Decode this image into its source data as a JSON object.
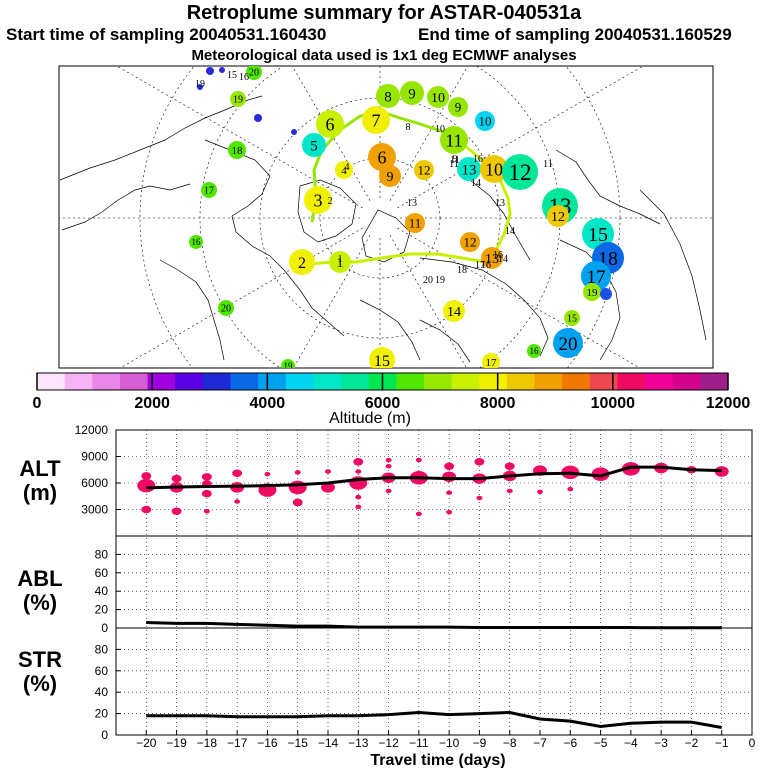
{
  "header": {
    "title": "Retroplume summary for ASTAR-040531a",
    "start_time": "Start time of sampling 20040531.160430",
    "end_time": "End time of sampling 20040531.160529",
    "met_data": "Meteorological data used is 1x1 deg ECMWF analyses"
  },
  "colorbar": {
    "label": "Altitude  (m)",
    "tick_labels": [
      "0",
      "2000",
      "4000",
      "6000",
      "8000",
      "10000",
      "12000"
    ],
    "tick_values": [
      0,
      2000,
      4000,
      6000,
      8000,
      10000,
      12000
    ],
    "colors": [
      "#fce6fc",
      "#f4b4f4",
      "#ea86ea",
      "#d45ed4",
      "#a000e0",
      "#5a00e6",
      "#1e2ad6",
      "#0a6ae6",
      "#00a2f0",
      "#00d4f0",
      "#00e6c8",
      "#00e69a",
      "#00e650",
      "#50e600",
      "#96e600",
      "#c8f000",
      "#f0f000",
      "#f0c800",
      "#f0a000",
      "#f07800",
      "#f04850",
      "#f00a64",
      "#f00096",
      "#d2008c",
      "#a01e8c"
    ]
  },
  "map": {
    "clusters": [
      {
        "label": "20",
        "color": "#50e600"
      },
      {
        "label": "19",
        "color": "#96e600"
      },
      {
        "label": "18",
        "color": "#50e600"
      },
      {
        "label": "17",
        "color": "#50e600"
      },
      {
        "label": "16",
        "color": "#50e600"
      },
      {
        "label": "20",
        "color": "#50e600"
      },
      {
        "label": "19",
        "color": "#50e600"
      },
      {
        "label": "6",
        "color": "#c8f000"
      },
      {
        "label": "5",
        "color": "#00e6c8"
      },
      {
        "label": "3",
        "color": "#f0f000"
      },
      {
        "label": "2",
        "color": "#f0f000"
      },
      {
        "label": "1",
        "color": "#c8f000"
      },
      {
        "label": "4",
        "color": "#f0f000"
      },
      {
        "label": "7",
        "color": "#f0f000"
      },
      {
        "label": "8",
        "color": "#96e600"
      },
      {
        "label": "9",
        "color": "#96e600"
      },
      {
        "label": "10",
        "color": "#96e600"
      },
      {
        "label": "9",
        "color": "#96e600"
      },
      {
        "label": "10",
        "color": "#00d4f0"
      },
      {
        "label": "6",
        "color": "#f0a000"
      },
      {
        "label": "9",
        "color": "#f0a000"
      },
      {
        "label": "12",
        "color": "#f0c800"
      },
      {
        "label": "11",
        "color": "#96e600"
      },
      {
        "label": "13",
        "color": "#00e6c8"
      },
      {
        "label": "10",
        "color": "#f0c800"
      },
      {
        "label": "12",
        "color": "#00e69a"
      },
      {
        "label": "13",
        "color": "#00e69a"
      },
      {
        "label": "12",
        "color": "#f0c800"
      },
      {
        "label": "15",
        "color": "#00e6c8"
      },
      {
        "label": "18",
        "color": "#0a6ae6"
      },
      {
        "label": "17",
        "color": "#00a2f0"
      },
      {
        "label": "11",
        "color": "#f0a000"
      },
      {
        "label": "12",
        "color": "#f0a000"
      },
      {
        "label": "13",
        "color": "#f0a000"
      },
      {
        "label": "14",
        "color": "#f0f000"
      },
      {
        "label": "15",
        "color": "#f0f000"
      },
      {
        "label": "20",
        "color": "#00a2f0"
      },
      {
        "label": "16",
        "color": "#50e600"
      },
      {
        "label": "15",
        "color": "#96e600"
      },
      {
        "label": "17",
        "color": "#f0f000"
      },
      {
        "label": "19",
        "color": "#96e600"
      }
    ],
    "small_labels": [
      "15",
      "16",
      "19",
      "8",
      "11",
      "16",
      "14",
      "13",
      "14",
      "16",
      "20",
      "19",
      "18",
      "17",
      "16",
      "14",
      "13",
      "11",
      "10",
      "9",
      "4",
      "2",
      "1",
      "11"
    ]
  },
  "chart_data": [
    {
      "type": "scatter",
      "panel": "ALT",
      "title": "ALT",
      "unit": "(m)",
      "ylim": [
        0,
        12000
      ],
      "y_ticks": [
        3000,
        6000,
        9000,
        12000
      ],
      "x_ticks": [
        -20,
        -19,
        -18,
        -17,
        -16,
        -15,
        -14,
        -13,
        -12,
        -11,
        -10,
        -9,
        -8,
        -7,
        -6,
        -5,
        -4,
        -3,
        -2,
        -1,
        0
      ],
      "xlabel": "Travel time (days)",
      "marker_color": "#f00a64",
      "mean_line": {
        "x": [
          -20,
          -19,
          -18,
          -17,
          -16,
          -15,
          -14,
          -13,
          -12,
          -11,
          -10,
          -9,
          -8,
          -7,
          -6,
          -5,
          -4,
          -3,
          -2,
          -1
        ],
        "y": [
          5450,
          5550,
          5600,
          5650,
          5700,
          5800,
          6000,
          6400,
          6600,
          6600,
          6500,
          6500,
          6800,
          7050,
          7100,
          6800,
          7800,
          7800,
          7500,
          7400
        ]
      },
      "points": [
        {
          "x": -20,
          "y": 6800,
          "s": 2
        },
        {
          "x": -20,
          "y": 5700,
          "s": 4
        },
        {
          "x": -20,
          "y": 3000,
          "s": 2
        },
        {
          "x": -19,
          "y": 6500,
          "s": 2
        },
        {
          "x": -19,
          "y": 5500,
          "s": 3
        },
        {
          "x": -19,
          "y": 2800,
          "s": 2
        },
        {
          "x": -18,
          "y": 6700,
          "s": 2
        },
        {
          "x": -18,
          "y": 5900,
          "s": 2
        },
        {
          "x": -18,
          "y": 4800,
          "s": 2
        },
        {
          "x": -18,
          "y": 2800,
          "s": 1
        },
        {
          "x": -17,
          "y": 7100,
          "s": 2
        },
        {
          "x": -17,
          "y": 5500,
          "s": 3
        },
        {
          "x": -17,
          "y": 3900,
          "s": 1
        },
        {
          "x": -16,
          "y": 7000,
          "s": 1
        },
        {
          "x": -16,
          "y": 5200,
          "s": 4
        },
        {
          "x": -15,
          "y": 7200,
          "s": 1
        },
        {
          "x": -15,
          "y": 5500,
          "s": 4
        },
        {
          "x": -15,
          "y": 3800,
          "s": 2
        },
        {
          "x": -14,
          "y": 7300,
          "s": 1
        },
        {
          "x": -14,
          "y": 5500,
          "s": 3
        },
        {
          "x": -13,
          "y": 8400,
          "s": 2
        },
        {
          "x": -13,
          "y": 7300,
          "s": 1
        },
        {
          "x": -13,
          "y": 6000,
          "s": 4
        },
        {
          "x": -13,
          "y": 4400,
          "s": 1
        },
        {
          "x": -13,
          "y": 3300,
          "s": 1
        },
        {
          "x": -12,
          "y": 8600,
          "s": 1
        },
        {
          "x": -12,
          "y": 7900,
          "s": 1
        },
        {
          "x": -12,
          "y": 6600,
          "s": 3
        },
        {
          "x": -12,
          "y": 5100,
          "s": 1
        },
        {
          "x": -11,
          "y": 8600,
          "s": 1
        },
        {
          "x": -11,
          "y": 6600,
          "s": 4
        },
        {
          "x": -11,
          "y": 2500,
          "s": 1
        },
        {
          "x": -10,
          "y": 7900,
          "s": 2
        },
        {
          "x": -10,
          "y": 6700,
          "s": 3
        },
        {
          "x": -10,
          "y": 4900,
          "s": 1
        },
        {
          "x": -10,
          "y": 2700,
          "s": 1
        },
        {
          "x": -9,
          "y": 8400,
          "s": 2
        },
        {
          "x": -9,
          "y": 6500,
          "s": 3
        },
        {
          "x": -9,
          "y": 4300,
          "s": 1
        },
        {
          "x": -8,
          "y": 7900,
          "s": 2
        },
        {
          "x": -8,
          "y": 6800,
          "s": 3
        },
        {
          "x": -8,
          "y": 5100,
          "s": 1
        },
        {
          "x": -7,
          "y": 7400,
          "s": 3
        },
        {
          "x": -7,
          "y": 5000,
          "s": 1
        },
        {
          "x": -6,
          "y": 7200,
          "s": 4
        },
        {
          "x": -6,
          "y": 5300,
          "s": 1
        },
        {
          "x": -5,
          "y": 7000,
          "s": 4
        },
        {
          "x": -4,
          "y": 7600,
          "s": 4
        },
        {
          "x": -3,
          "y": 7700,
          "s": 3
        },
        {
          "x": -2,
          "y": 7500,
          "s": 2
        },
        {
          "x": -1,
          "y": 7300,
          "s": 3
        }
      ]
    },
    {
      "type": "line",
      "panel": "ABL",
      "title": "ABL",
      "unit": "(%)",
      "ylim": [
        0,
        100
      ],
      "y_ticks": [
        0,
        20,
        40,
        60,
        80
      ],
      "x": [
        -20,
        -19,
        -18,
        -17,
        -16,
        -15,
        -14,
        -13,
        -12,
        -11,
        -10,
        -9,
        -8,
        -7,
        -6,
        -5,
        -4,
        -3,
        -2,
        -1
      ],
      "y": [
        6,
        5,
        5,
        4,
        3,
        2,
        2,
        1,
        1,
        1,
        1,
        0.5,
        0.5,
        0.5,
        0.5,
        0.5,
        0.5,
        0.3,
        0.3,
        0.3
      ]
    },
    {
      "type": "line",
      "panel": "STR",
      "title": "STR",
      "unit": "(%)",
      "ylim": [
        0,
        100
      ],
      "y_ticks": [
        0,
        20,
        40,
        60,
        80
      ],
      "x": [
        -20,
        -19,
        -18,
        -17,
        -16,
        -15,
        -14,
        -13,
        -12,
        -11,
        -10,
        -9,
        -8,
        -7,
        -6,
        -5,
        -4,
        -3,
        -2,
        -1
      ],
      "y": [
        18,
        18,
        18,
        17,
        17,
        17,
        18,
        18,
        19,
        21,
        19,
        20,
        21,
        15,
        13,
        8,
        11,
        12,
        12,
        7
      ]
    }
  ]
}
